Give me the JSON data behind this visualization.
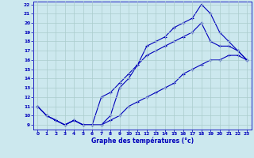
{
  "xlabel": "Graphe des températures (°c)",
  "x": [
    0,
    1,
    2,
    3,
    4,
    5,
    6,
    7,
    8,
    9,
    10,
    11,
    12,
    13,
    14,
    15,
    16,
    17,
    18,
    19,
    20,
    21,
    22,
    23
  ],
  "line1": [
    11,
    10,
    9.5,
    9,
    9.5,
    9,
    9,
    9,
    10,
    13,
    14,
    15.5,
    17.5,
    18,
    18.5,
    19.5,
    20,
    20.5,
    22,
    21,
    19,
    18,
    17,
    16
  ],
  "line2": [
    11,
    10,
    9.5,
    9,
    9.5,
    9,
    9,
    12,
    12.5,
    13.5,
    14.5,
    15.5,
    16.5,
    17,
    17.5,
    18,
    18.5,
    19,
    20,
    18,
    17.5,
    17.5,
    17,
    16
  ],
  "line3": [
    11,
    10,
    9.5,
    9,
    9.5,
    9,
    9,
    9,
    9.5,
    10,
    11,
    11.5,
    12,
    12.5,
    13,
    13.5,
    14.5,
    15,
    15.5,
    16,
    16,
    16.5,
    16.5,
    16
  ],
  "line_color": "#0000bb",
  "bg_color": "#cce8ee",
  "grid_color": "#aacccc",
  "ylim_min": 9,
  "ylim_max": 22,
  "xlim_min": 0,
  "xlim_max": 23,
  "yticks": [
    9,
    10,
    11,
    12,
    13,
    14,
    15,
    16,
    17,
    18,
    19,
    20,
    21,
    22
  ],
  "xticks": [
    0,
    1,
    2,
    3,
    4,
    5,
    6,
    7,
    8,
    9,
    10,
    11,
    12,
    13,
    14,
    15,
    16,
    17,
    18,
    19,
    20,
    21,
    22,
    23
  ],
  "tick_fontsize": 4.2,
  "xlabel_fontsize": 5.5
}
